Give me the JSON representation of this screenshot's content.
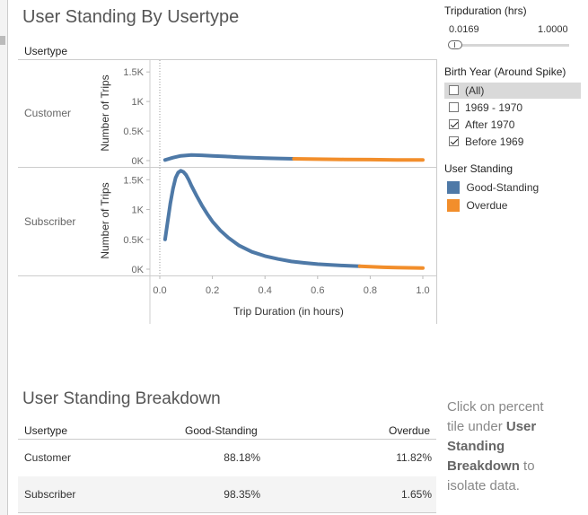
{
  "chart_title": "User Standing By Usertype",
  "breakdown_title": "User Standing Breakdown",
  "chart_header": "Usertype",
  "row_labels": [
    "Customer",
    "Subscriber"
  ],
  "chart_data": {
    "type": "line",
    "xlabel": "Trip Duration (in hours)",
    "ylabel": "Number of Trips",
    "x_ticks": [
      "0.0",
      "0.2",
      "0.4",
      "0.6",
      "0.8",
      "1.0"
    ],
    "y_ticks": [
      "0K",
      "0.5K",
      "1K",
      "1.5K"
    ],
    "xlim": [
      0,
      1
    ],
    "ylim": [
      0,
      1700
    ],
    "panels": [
      {
        "row": "Customer",
        "series": [
          {
            "name": "Good-Standing",
            "x": [
              0.02,
              0.05,
              0.08,
              0.12,
              0.16,
              0.2,
              0.25,
              0.3,
              0.35,
              0.4,
              0.45,
              0.51
            ],
            "y": [
              10,
              50,
              80,
              95,
              90,
              80,
              70,
              58,
              48,
              42,
              36,
              30
            ]
          },
          {
            "name": "Overdue",
            "x": [
              0.51,
              0.6,
              0.7,
              0.8,
              0.9,
              1.0
            ],
            "y": [
              30,
              25,
              20,
              16,
              12,
              10
            ]
          }
        ]
      },
      {
        "row": "Subscriber",
        "series": [
          {
            "name": "Good-Standing",
            "x": [
              0.02,
              0.03,
              0.04,
              0.05,
              0.06,
              0.07,
              0.08,
              0.09,
              0.1,
              0.11,
              0.12,
              0.14,
              0.16,
              0.18,
              0.2,
              0.23,
              0.26,
              0.3,
              0.35,
              0.4,
              0.45,
              0.5,
              0.55,
              0.6,
              0.65,
              0.7,
              0.76
            ],
            "y": [
              500,
              800,
              1100,
              1350,
              1530,
              1620,
              1650,
              1630,
              1580,
              1500,
              1400,
              1230,
              1070,
              930,
              800,
              650,
              530,
              400,
              290,
              220,
              170,
              130,
              105,
              85,
              70,
              60,
              50
            ]
          },
          {
            "name": "Overdue",
            "x": [
              0.76,
              0.8,
              0.85,
              0.9,
              0.95,
              1.0
            ],
            "y": [
              50,
              40,
              32,
              27,
              22,
              20
            ]
          }
        ]
      }
    ]
  },
  "colors": {
    "good": "#4e79a7",
    "overdue": "#f28e2b"
  },
  "filters": {
    "trip_title": "Tripduration (hrs)",
    "trip_min": "0.0169",
    "trip_max": "1.0000",
    "birth_title": "Birth Year (Around Spike)",
    "birth_options": [
      {
        "label": "(All)",
        "checked": false
      },
      {
        "label": "1969 - 1970",
        "checked": false
      },
      {
        "label": "After 1970",
        "checked": true
      },
      {
        "label": "Before 1969",
        "checked": true
      }
    ],
    "standing_title": "User Standing",
    "standing_items": [
      "Good-Standing",
      "Overdue"
    ]
  },
  "table": {
    "headers": [
      "Usertype",
      "Good-Standing",
      "Overdue"
    ],
    "rows": [
      {
        "type": "Customer",
        "good": "88.18%",
        "overdue": "11.82%"
      },
      {
        "type": "Subscriber",
        "good": "98.35%",
        "overdue": "1.65%"
      }
    ]
  },
  "note": {
    "part1": "Click on percent tile under ",
    "bold": "User Standing Breakdown",
    "part2": " to isolate data."
  }
}
